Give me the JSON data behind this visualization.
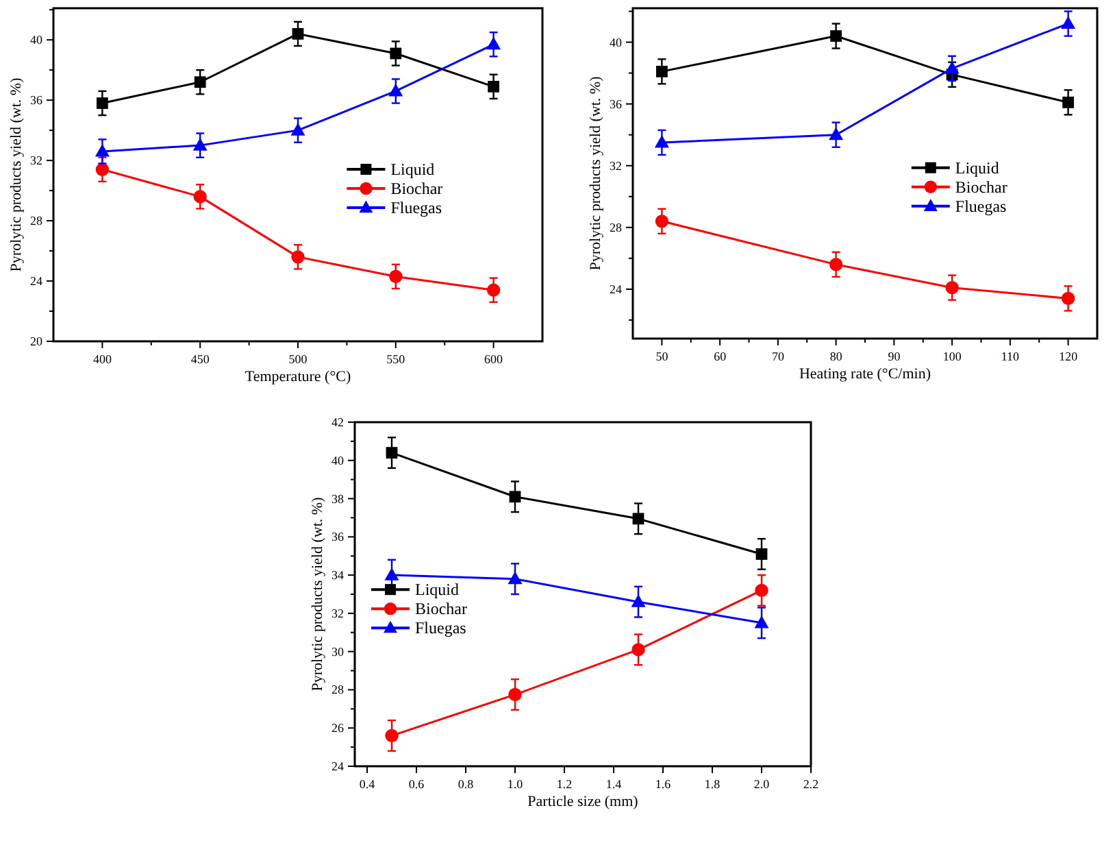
{
  "chart_data": [
    {
      "type": "line",
      "xlabel": "Temperature (°C)",
      "ylabel": "Pyrolytic products yield (wt. %)",
      "x": [
        400,
        450,
        500,
        550,
        600
      ],
      "xlim": [
        375,
        625
      ],
      "ylim": [
        20,
        42.1
      ],
      "xticks": [
        400,
        {
          "value": 425,
          "label": null
        },
        450,
        {
          "value": 475,
          "label": null
        },
        500,
        {
          "value": 525,
          "label": null
        },
        550,
        {
          "value": 575,
          "label": null
        },
        600
      ],
      "yticks": [
        20,
        {
          "value": 22,
          "label": null
        },
        24,
        {
          "value": 26,
          "label": null
        },
        28,
        {
          "value": 30,
          "label": null
        },
        32,
        {
          "value": 34,
          "label": null
        },
        36,
        {
          "value": 38,
          "label": null
        },
        40,
        {
          "value": 42,
          "label": null
        }
      ],
      "legend": "center right",
      "series": [
        {
          "name": "Liquid",
          "color": "#000000",
          "marker": "square",
          "values": [
            35.8,
            37.2,
            40.4,
            39.1,
            36.9
          ],
          "errors": [
            0.8,
            0.8,
            0.8,
            0.8,
            0.8
          ]
        },
        {
          "name": "Biochar",
          "color": "#ff0000",
          "marker": "circle",
          "values": [
            31.4,
            29.6,
            25.6,
            24.3,
            23.4
          ],
          "errors": [
            0.8,
            0.8,
            0.8,
            0.8,
            0.8
          ]
        },
        {
          "name": "Fluegas",
          "color": "#0000ff",
          "marker": "triangle",
          "values": [
            32.6,
            33.0,
            34.0,
            36.6,
            39.7
          ],
          "errors": [
            0.8,
            0.8,
            0.8,
            0.8,
            0.8
          ]
        }
      ]
    },
    {
      "type": "line",
      "xlabel": "Heating rate (°C/min)",
      "ylabel": "Pyrolytic products yield (wt. %)",
      "x": [
        50,
        80,
        100,
        120
      ],
      "xlim": [
        45,
        125
      ],
      "ylim": [
        20.8,
        42.2
      ],
      "xticks": [
        50,
        {
          "value": 55,
          "label": null
        },
        60,
        {
          "value": 65,
          "label": null
        },
        70,
        {
          "value": 75,
          "label": null
        },
        80,
        {
          "value": 85,
          "label": null
        },
        90,
        {
          "value": 95,
          "label": null
        },
        100,
        {
          "value": 105,
          "label": null
        },
        110,
        {
          "value": 115,
          "label": null
        },
        120
      ],
      "yticks": [
        {
          "value": 22,
          "label": null
        },
        24,
        {
          "value": 26,
          "label": null
        },
        28,
        {
          "value": 30,
          "label": null
        },
        32,
        {
          "value": 34,
          "label": null
        },
        36,
        {
          "value": 38,
          "label": null
        },
        40,
        {
          "value": 42,
          "label": null
        }
      ],
      "legend": "center right",
      "series": [
        {
          "name": "Liquid",
          "color": "#000000",
          "marker": "square",
          "values": [
            38.1,
            40.4,
            37.9,
            36.1
          ],
          "errors": [
            0.8,
            0.8,
            0.8,
            0.8
          ]
        },
        {
          "name": "Biochar",
          "color": "#ff0000",
          "marker": "circle",
          "values": [
            28.4,
            25.6,
            24.1,
            23.4
          ],
          "errors": [
            0.8,
            0.8,
            0.8,
            0.8
          ]
        },
        {
          "name": "Fluegas",
          "color": "#0000ff",
          "marker": "triangle",
          "values": [
            33.5,
            34.0,
            38.3,
            41.2
          ],
          "errors": [
            0.8,
            0.8,
            0.8,
            0.8
          ]
        }
      ]
    },
    {
      "type": "line",
      "xlabel": "Particle size (mm)",
      "ylabel": "Pyrolytic products yield (wt. %)",
      "x": [
        0.5,
        1.0,
        1.5,
        2.0
      ],
      "xlim": [
        0.35,
        2.2
      ],
      "ylim": [
        24,
        42
      ],
      "xticks": [
        {
          "value": 0.4,
          "label": "0.4"
        },
        {
          "value": 0.6,
          "label": "0.6"
        },
        {
          "value": 0.8,
          "label": "0.8"
        },
        {
          "value": 1.0,
          "label": "1.0"
        },
        {
          "value": 1.2,
          "label": "1.2"
        },
        {
          "value": 1.4,
          "label": "1.4"
        },
        {
          "value": 1.6,
          "label": "1.6"
        },
        {
          "value": 1.8,
          "label": "1.8"
        },
        {
          "value": 2.0,
          "label": "2.0"
        },
        {
          "value": 2.2,
          "label": "2.2"
        }
      ],
      "yticks": [
        24,
        {
          "value": 25,
          "label": null
        },
        26,
        {
          "value": 27,
          "label": null
        },
        28,
        {
          "value": 29,
          "label": null
        },
        30,
        {
          "value": 31,
          "label": null
        },
        32,
        {
          "value": 33,
          "label": null
        },
        34,
        {
          "value": 35,
          "label": null
        },
        36,
        {
          "value": 37,
          "label": null
        },
        38,
        {
          "value": 39,
          "label": null
        },
        40,
        {
          "value": 41,
          "label": null
        },
        42
      ],
      "legend": "center left",
      "series": [
        {
          "name": "Liquid",
          "color": "#000000",
          "marker": "square",
          "values": [
            40.4,
            38.1,
            36.95,
            35.1
          ],
          "errors": [
            0.8,
            0.8,
            0.8,
            0.8
          ]
        },
        {
          "name": "Biochar",
          "color": "#ff0000",
          "marker": "circle",
          "values": [
            25.6,
            27.75,
            30.1,
            33.2
          ],
          "errors": [
            0.8,
            0.8,
            0.8,
            0.8
          ]
        },
        {
          "name": "Fluegas",
          "color": "#0000ff",
          "marker": "triangle",
          "values": [
            34.0,
            33.8,
            32.6,
            31.5
          ],
          "errors": [
            0.8,
            0.8,
            0.8,
            0.8
          ]
        }
      ]
    }
  ]
}
